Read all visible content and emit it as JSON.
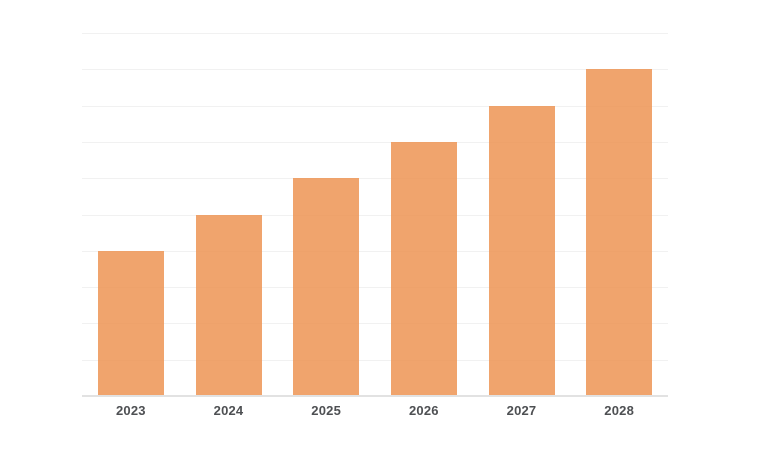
{
  "chart_data": {
    "type": "bar",
    "title": "",
    "xlabel": "",
    "ylabel": "",
    "categories": [
      "2023",
      "2024",
      "2025",
      "2026",
      "2027",
      "2028"
    ],
    "values": [
      4,
      5,
      6,
      7,
      8,
      9
    ],
    "ylim": [
      0,
      10
    ],
    "gridline_interval": 1,
    "grid": "horizontal",
    "y_axis_tick_labels_visible": false,
    "legend": "none",
    "note": "No numeric value labels or y-axis ticks are shown; values are estimated in gridline units (bars rise 4,5,6,7,8,9 gridline steps above the baseline)."
  },
  "style": {
    "bar_color": "#F0A46E",
    "gridline_color": "#f1f1f1",
    "baseline_color": "#e2e2e2",
    "label_color": "#4e5053",
    "background_color": "#ffffff"
  }
}
